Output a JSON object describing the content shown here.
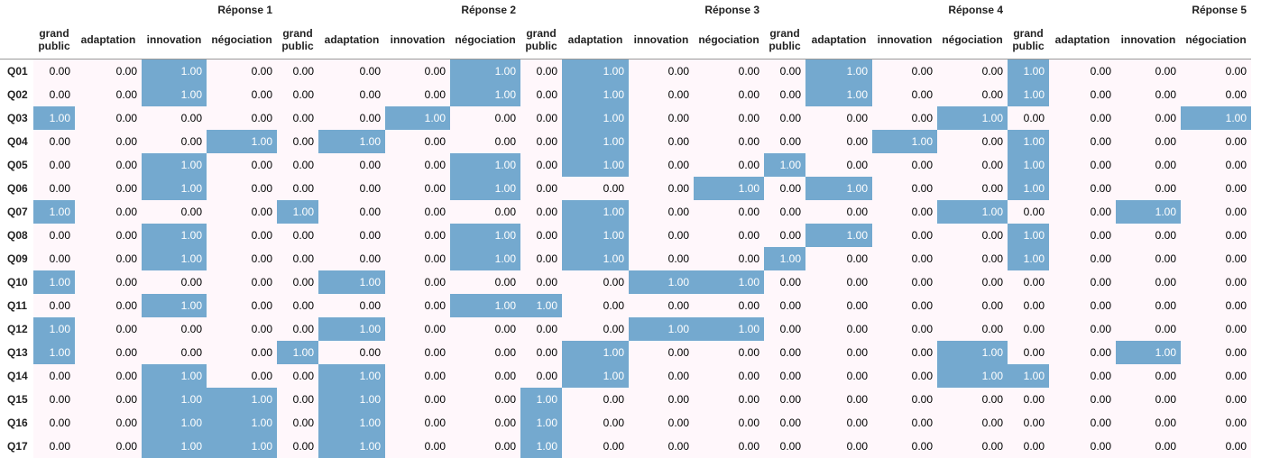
{
  "table": {
    "groups": [
      "Réponse 1",
      "Réponse 2",
      "Réponse 3",
      "Réponse 4",
      "Réponse 5"
    ],
    "columns": [
      "grand public",
      "adaptation",
      "innovation",
      "négociation",
      "grand public",
      "adaptation",
      "innovation",
      "négociation",
      "grand public",
      "adaptation",
      "innovation",
      "négociation",
      "grand public",
      "adaptation",
      "innovation",
      "négociation",
      "grand public",
      "adaptation",
      "innovation",
      "négociation"
    ],
    "colors": {
      "low": "#fff7fb",
      "high": "#74a9cf",
      "low_text": "#000000",
      "high_text": "#ffffff"
    },
    "rows": [
      {
        "label": "Q01",
        "values": [
          "0.00",
          "0.00",
          "1.00",
          "0.00",
          "0.00",
          "0.00",
          "0.00",
          "1.00",
          "0.00",
          "1.00",
          "0.00",
          "0.00",
          "0.00",
          "1.00",
          "0.00",
          "0.00",
          "1.00",
          "0.00",
          "0.00",
          "0.00"
        ]
      },
      {
        "label": "Q02",
        "values": [
          "0.00",
          "0.00",
          "1.00",
          "0.00",
          "0.00",
          "0.00",
          "0.00",
          "1.00",
          "0.00",
          "1.00",
          "0.00",
          "0.00",
          "0.00",
          "1.00",
          "0.00",
          "0.00",
          "1.00",
          "0.00",
          "0.00",
          "0.00"
        ]
      },
      {
        "label": "Q03",
        "values": [
          "1.00",
          "0.00",
          "0.00",
          "0.00",
          "0.00",
          "0.00",
          "1.00",
          "0.00",
          "0.00",
          "1.00",
          "0.00",
          "0.00",
          "0.00",
          "0.00",
          "0.00",
          "1.00",
          "0.00",
          "0.00",
          "0.00",
          "1.00"
        ]
      },
      {
        "label": "Q04",
        "values": [
          "0.00",
          "0.00",
          "0.00",
          "1.00",
          "0.00",
          "1.00",
          "0.00",
          "0.00",
          "0.00",
          "1.00",
          "0.00",
          "0.00",
          "0.00",
          "0.00",
          "1.00",
          "0.00",
          "1.00",
          "0.00",
          "0.00",
          "0.00"
        ]
      },
      {
        "label": "Q05",
        "values": [
          "0.00",
          "0.00",
          "1.00",
          "0.00",
          "0.00",
          "0.00",
          "0.00",
          "1.00",
          "0.00",
          "1.00",
          "0.00",
          "0.00",
          "1.00",
          "0.00",
          "0.00",
          "0.00",
          "1.00",
          "0.00",
          "0.00",
          "0.00"
        ]
      },
      {
        "label": "Q06",
        "values": [
          "0.00",
          "0.00",
          "1.00",
          "0.00",
          "0.00",
          "0.00",
          "0.00",
          "1.00",
          "0.00",
          "0.00",
          "0.00",
          "1.00",
          "0.00",
          "1.00",
          "0.00",
          "0.00",
          "1.00",
          "0.00",
          "0.00",
          "0.00"
        ]
      },
      {
        "label": "Q07",
        "values": [
          "1.00",
          "0.00",
          "0.00",
          "0.00",
          "1.00",
          "0.00",
          "0.00",
          "0.00",
          "0.00",
          "1.00",
          "0.00",
          "0.00",
          "0.00",
          "0.00",
          "0.00",
          "1.00",
          "0.00",
          "0.00",
          "1.00",
          "0.00"
        ]
      },
      {
        "label": "Q08",
        "values": [
          "0.00",
          "0.00",
          "1.00",
          "0.00",
          "0.00",
          "0.00",
          "0.00",
          "1.00",
          "0.00",
          "1.00",
          "0.00",
          "0.00",
          "0.00",
          "1.00",
          "0.00",
          "0.00",
          "1.00",
          "0.00",
          "0.00",
          "0.00"
        ]
      },
      {
        "label": "Q09",
        "values": [
          "0.00",
          "0.00",
          "1.00",
          "0.00",
          "0.00",
          "0.00",
          "0.00",
          "1.00",
          "0.00",
          "1.00",
          "0.00",
          "0.00",
          "1.00",
          "0.00",
          "0.00",
          "0.00",
          "1.00",
          "0.00",
          "0.00",
          "0.00"
        ]
      },
      {
        "label": "Q10",
        "values": [
          "1.00",
          "0.00",
          "0.00",
          "0.00",
          "0.00",
          "1.00",
          "0.00",
          "0.00",
          "0.00",
          "0.00",
          "1.00",
          "1.00",
          "0.00",
          "0.00",
          "0.00",
          "0.00",
          "0.00",
          "0.00",
          "0.00",
          "0.00"
        ]
      },
      {
        "label": "Q11",
        "values": [
          "0.00",
          "0.00",
          "1.00",
          "0.00",
          "0.00",
          "0.00",
          "0.00",
          "1.00",
          "1.00",
          "0.00",
          "0.00",
          "0.00",
          "0.00",
          "0.00",
          "0.00",
          "0.00",
          "0.00",
          "0.00",
          "0.00",
          "0.00"
        ]
      },
      {
        "label": "Q12",
        "values": [
          "1.00",
          "0.00",
          "0.00",
          "0.00",
          "0.00",
          "1.00",
          "0.00",
          "0.00",
          "0.00",
          "0.00",
          "1.00",
          "1.00",
          "0.00",
          "0.00",
          "0.00",
          "0.00",
          "0.00",
          "0.00",
          "0.00",
          "0.00"
        ]
      },
      {
        "label": "Q13",
        "values": [
          "1.00",
          "0.00",
          "0.00",
          "0.00",
          "1.00",
          "0.00",
          "0.00",
          "0.00",
          "0.00",
          "1.00",
          "0.00",
          "0.00",
          "0.00",
          "0.00",
          "0.00",
          "1.00",
          "0.00",
          "0.00",
          "1.00",
          "0.00"
        ]
      },
      {
        "label": "Q14",
        "values": [
          "0.00",
          "0.00",
          "1.00",
          "0.00",
          "0.00",
          "1.00",
          "0.00",
          "0.00",
          "0.00",
          "1.00",
          "0.00",
          "0.00",
          "0.00",
          "0.00",
          "0.00",
          "1.00",
          "1.00",
          "0.00",
          "0.00",
          "0.00"
        ]
      },
      {
        "label": "Q15",
        "values": [
          "0.00",
          "0.00",
          "1.00",
          "1.00",
          "0.00",
          "1.00",
          "0.00",
          "0.00",
          "1.00",
          "0.00",
          "0.00",
          "0.00",
          "0.00",
          "0.00",
          "0.00",
          "0.00",
          "0.00",
          "0.00",
          "0.00",
          "0.00"
        ]
      },
      {
        "label": "Q16",
        "values": [
          "0.00",
          "0.00",
          "1.00",
          "1.00",
          "0.00",
          "1.00",
          "0.00",
          "0.00",
          "1.00",
          "0.00",
          "0.00",
          "0.00",
          "0.00",
          "0.00",
          "0.00",
          "0.00",
          "0.00",
          "0.00",
          "0.00",
          "0.00"
        ]
      },
      {
        "label": "Q17",
        "values": [
          "0.00",
          "0.00",
          "1.00",
          "1.00",
          "0.00",
          "1.00",
          "0.00",
          "0.00",
          "1.00",
          "0.00",
          "0.00",
          "0.00",
          "0.00",
          "0.00",
          "0.00",
          "0.00",
          "0.00",
          "0.00",
          "0.00",
          "0.00"
        ]
      }
    ]
  }
}
